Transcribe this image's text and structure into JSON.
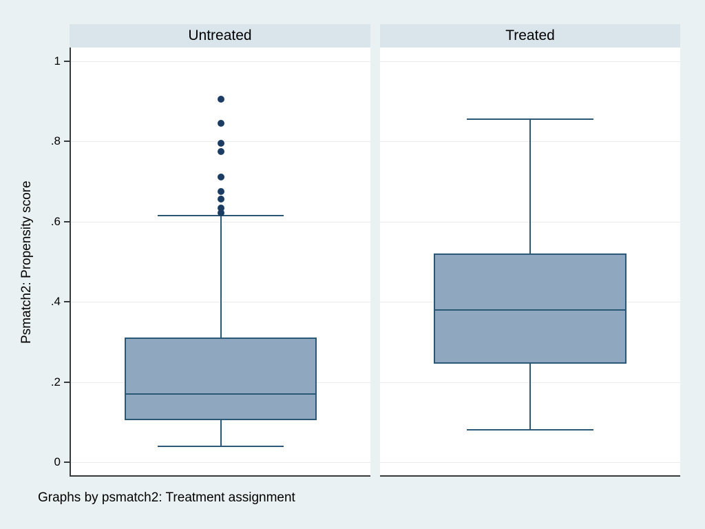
{
  "chart_data": {
    "type": "boxplot",
    "ylabel": "Psmatch2: Propensity score",
    "ylim": [
      0,
      1
    ],
    "yticks": [
      0,
      0.2,
      0.4,
      0.6,
      0.8,
      1
    ],
    "ytick_labels": [
      "0",
      ".2",
      ".4",
      ".6",
      ".8",
      "1"
    ],
    "grid": true,
    "note": "Graphs by psmatch2: Treatment assignment",
    "panels": [
      {
        "label": "Untreated",
        "whisker_low": 0.04,
        "q1": 0.105,
        "median": 0.17,
        "q3": 0.31,
        "whisker_high": 0.615,
        "outliers": [
          0.905,
          0.845,
          0.795,
          0.775,
          0.71,
          0.675,
          0.655,
          0.633,
          0.622
        ]
      },
      {
        "label": "Treated",
        "whisker_low": 0.08,
        "q1": 0.245,
        "median": 0.38,
        "q3": 0.52,
        "whisker_high": 0.855,
        "outliers": []
      }
    ],
    "colors": {
      "canvas_bg": "#EAF1F2",
      "header_bg": "#DAE5EB",
      "plot_bg": "#FFFFFF",
      "grid_line": "#E8ECEC",
      "axis_line": "#35393B",
      "box_fill": "#8FA8C0",
      "box_border": "#2A5773",
      "outlier": "#1C3D63",
      "text": "#000000"
    }
  }
}
